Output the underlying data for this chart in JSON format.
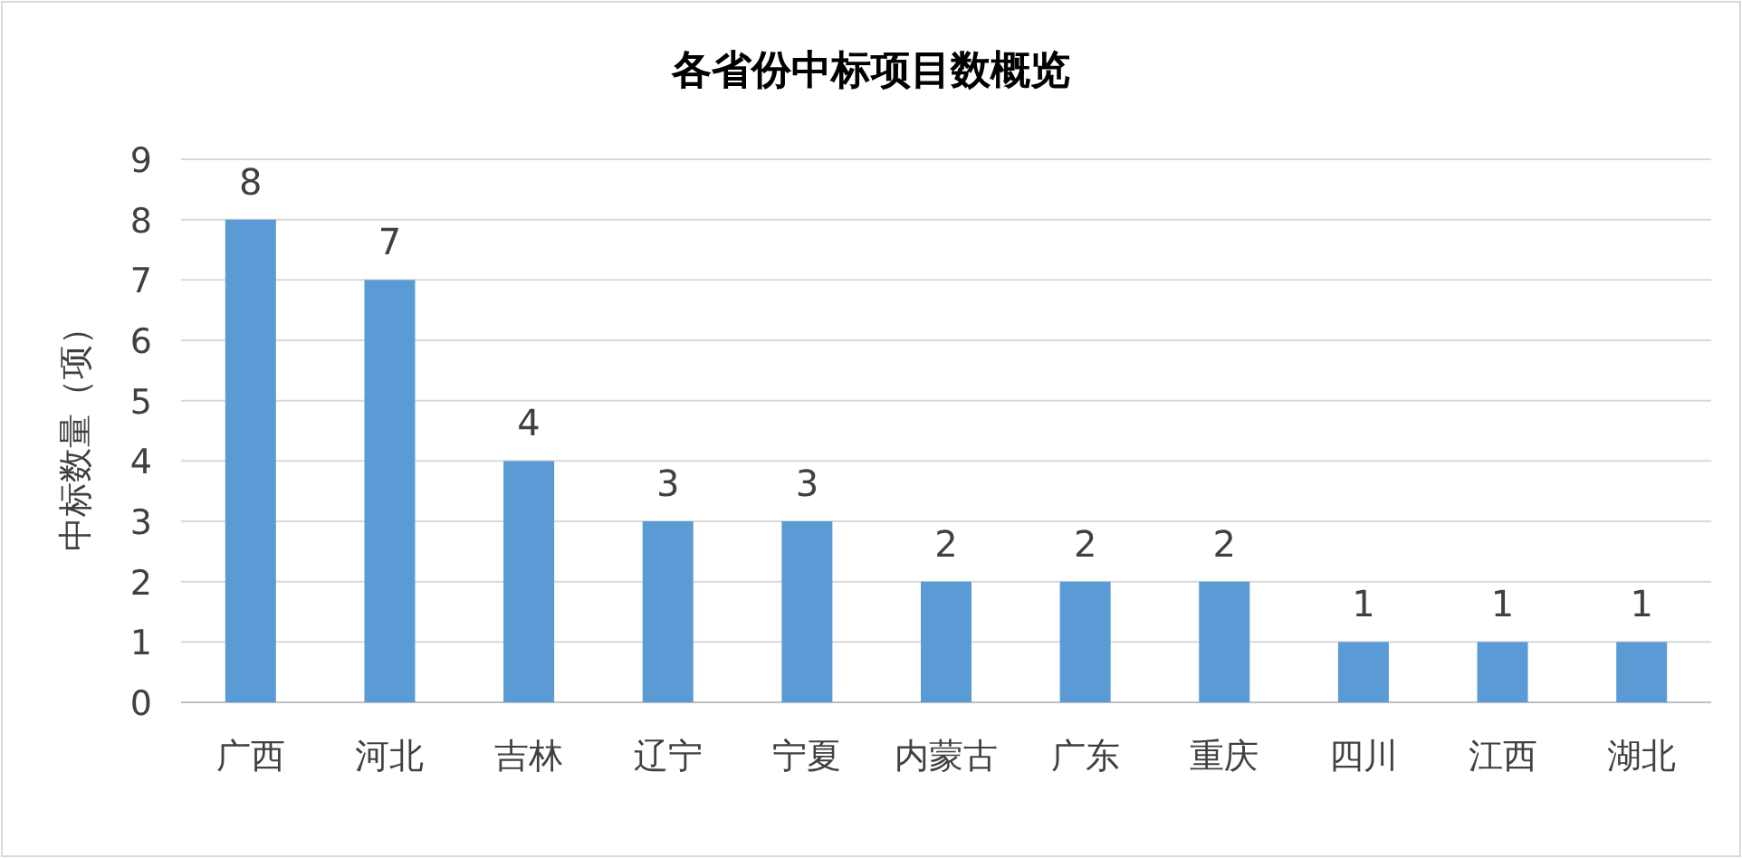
{
  "chart_data": {
    "type": "bar",
    "title": "各省份中标项目数概览",
    "ylabel": "中标数量（项）",
    "categories": [
      "广西",
      "河北",
      "吉林",
      "辽宁",
      "宁夏",
      "内蒙古",
      "广东",
      "重庆",
      "四川",
      "江西",
      "湖北"
    ],
    "values": [
      8,
      7,
      4,
      3,
      3,
      2,
      2,
      2,
      1,
      1,
      1
    ],
    "color": "#5b9bd5",
    "ylim": [
      0,
      9
    ],
    "yticks": [
      0,
      1,
      2,
      3,
      4,
      5,
      6,
      7,
      8,
      9
    ],
    "grid": "y",
    "data_labels": true
  }
}
